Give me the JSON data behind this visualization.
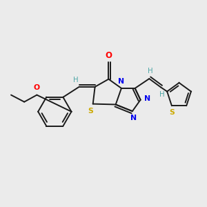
{
  "background_color": "#ebebeb",
  "bond_color": "#1a1a1a",
  "atom_colors": {
    "O": "#ff0000",
    "N": "#0000ee",
    "S_yellow": "#ccaa00",
    "S_teal": "#008080",
    "H": "#4da6a6"
  },
  "figsize": [
    3.0,
    3.0
  ],
  "dpi": 100
}
